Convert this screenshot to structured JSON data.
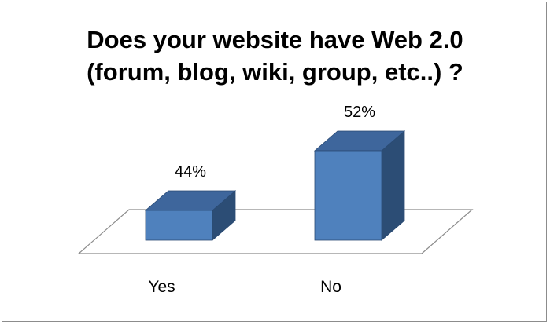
{
  "chart_data": {
    "type": "bar",
    "title_lines": [
      "Does your website have Web 2.0",
      "(forum, blog, wiki, group, etc..) ?"
    ],
    "categories": [
      "Yes",
      "No"
    ],
    "values": [
      44,
      52
    ],
    "data_labels": [
      "44%",
      "52%"
    ],
    "ylim": [
      40,
      60
    ],
    "grid": false,
    "legend": "none",
    "three_d": true
  },
  "colors": {
    "bar_front": "#4f81bd",
    "bar_top": "#3e669c",
    "bar_side": "#2c4d75",
    "bar_edge": "#2a4a73",
    "floor": "#ffffff",
    "floor_edge": "#8c8c8c"
  }
}
